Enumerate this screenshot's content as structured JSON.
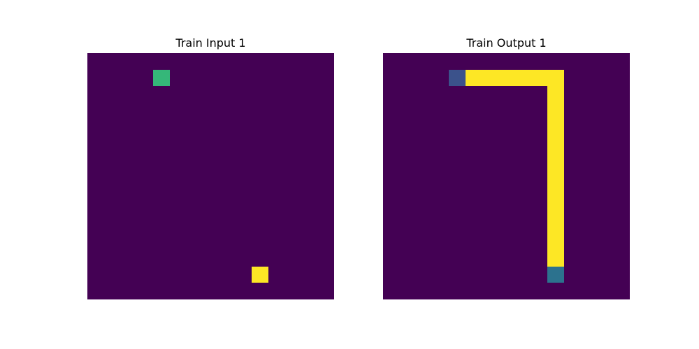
{
  "panels": [
    {
      "title": "Train Input 1",
      "grid": [
        [
          0,
          0,
          0,
          0,
          0,
          0,
          0,
          0,
          0,
          0,
          0,
          0,
          0,
          0,
          0
        ],
        [
          0,
          0,
          0,
          0,
          3,
          0,
          0,
          0,
          0,
          0,
          0,
          0,
          0,
          0,
          0
        ],
        [
          0,
          0,
          0,
          0,
          0,
          0,
          0,
          0,
          0,
          0,
          0,
          0,
          0,
          0,
          0
        ],
        [
          0,
          0,
          0,
          0,
          0,
          0,
          0,
          0,
          0,
          0,
          0,
          0,
          0,
          0,
          0
        ],
        [
          0,
          0,
          0,
          0,
          0,
          0,
          0,
          0,
          0,
          0,
          0,
          0,
          0,
          0,
          0
        ],
        [
          0,
          0,
          0,
          0,
          0,
          0,
          0,
          0,
          0,
          0,
          0,
          0,
          0,
          0,
          0
        ],
        [
          0,
          0,
          0,
          0,
          0,
          0,
          0,
          0,
          0,
          0,
          0,
          0,
          0,
          0,
          0
        ],
        [
          0,
          0,
          0,
          0,
          0,
          0,
          0,
          0,
          0,
          0,
          0,
          0,
          0,
          0,
          0
        ],
        [
          0,
          0,
          0,
          0,
          0,
          0,
          0,
          0,
          0,
          0,
          0,
          0,
          0,
          0,
          0
        ],
        [
          0,
          0,
          0,
          0,
          0,
          0,
          0,
          0,
          0,
          0,
          0,
          0,
          0,
          0,
          0
        ],
        [
          0,
          0,
          0,
          0,
          0,
          0,
          0,
          0,
          0,
          0,
          0,
          0,
          0,
          0,
          0
        ],
        [
          0,
          0,
          0,
          0,
          0,
          0,
          0,
          0,
          0,
          0,
          0,
          0,
          0,
          0,
          0
        ],
        [
          0,
          0,
          0,
          0,
          0,
          0,
          0,
          0,
          0,
          0,
          0,
          0,
          0,
          0,
          0
        ],
        [
          0,
          0,
          0,
          0,
          0,
          0,
          0,
          0,
          0,
          0,
          4,
          0,
          0,
          0,
          0
        ],
        [
          0,
          0,
          0,
          0,
          0,
          0,
          0,
          0,
          0,
          0,
          0,
          0,
          0,
          0,
          0
        ]
      ]
    },
    {
      "title": "Train Output 1",
      "grid": [
        [
          0,
          0,
          0,
          0,
          0,
          0,
          0,
          0,
          0,
          0,
          0,
          0,
          0,
          0,
          0
        ],
        [
          0,
          0,
          0,
          0,
          1,
          4,
          4,
          4,
          4,
          4,
          4,
          0,
          0,
          0,
          0
        ],
        [
          0,
          0,
          0,
          0,
          0,
          0,
          0,
          0,
          0,
          0,
          4,
          0,
          0,
          0,
          0
        ],
        [
          0,
          0,
          0,
          0,
          0,
          0,
          0,
          0,
          0,
          0,
          4,
          0,
          0,
          0,
          0
        ],
        [
          0,
          0,
          0,
          0,
          0,
          0,
          0,
          0,
          0,
          0,
          4,
          0,
          0,
          0,
          0
        ],
        [
          0,
          0,
          0,
          0,
          0,
          0,
          0,
          0,
          0,
          0,
          4,
          0,
          0,
          0,
          0
        ],
        [
          0,
          0,
          0,
          0,
          0,
          0,
          0,
          0,
          0,
          0,
          4,
          0,
          0,
          0,
          0
        ],
        [
          0,
          0,
          0,
          0,
          0,
          0,
          0,
          0,
          0,
          0,
          4,
          0,
          0,
          0,
          0
        ],
        [
          0,
          0,
          0,
          0,
          0,
          0,
          0,
          0,
          0,
          0,
          4,
          0,
          0,
          0,
          0
        ],
        [
          0,
          0,
          0,
          0,
          0,
          0,
          0,
          0,
          0,
          0,
          4,
          0,
          0,
          0,
          0
        ],
        [
          0,
          0,
          0,
          0,
          0,
          0,
          0,
          0,
          0,
          0,
          4,
          0,
          0,
          0,
          0
        ],
        [
          0,
          0,
          0,
          0,
          0,
          0,
          0,
          0,
          0,
          0,
          4,
          0,
          0,
          0,
          0
        ],
        [
          0,
          0,
          0,
          0,
          0,
          0,
          0,
          0,
          0,
          0,
          4,
          0,
          0,
          0,
          0
        ],
        [
          0,
          0,
          0,
          0,
          0,
          0,
          0,
          0,
          0,
          0,
          2,
          0,
          0,
          0,
          0
        ],
        [
          0,
          0,
          0,
          0,
          0,
          0,
          0,
          0,
          0,
          0,
          0,
          0,
          0,
          0,
          0
        ]
      ]
    }
  ],
  "palette": [
    "#440154",
    "#3b528b",
    "#2c728e",
    "#35b779",
    "#fde725"
  ]
}
